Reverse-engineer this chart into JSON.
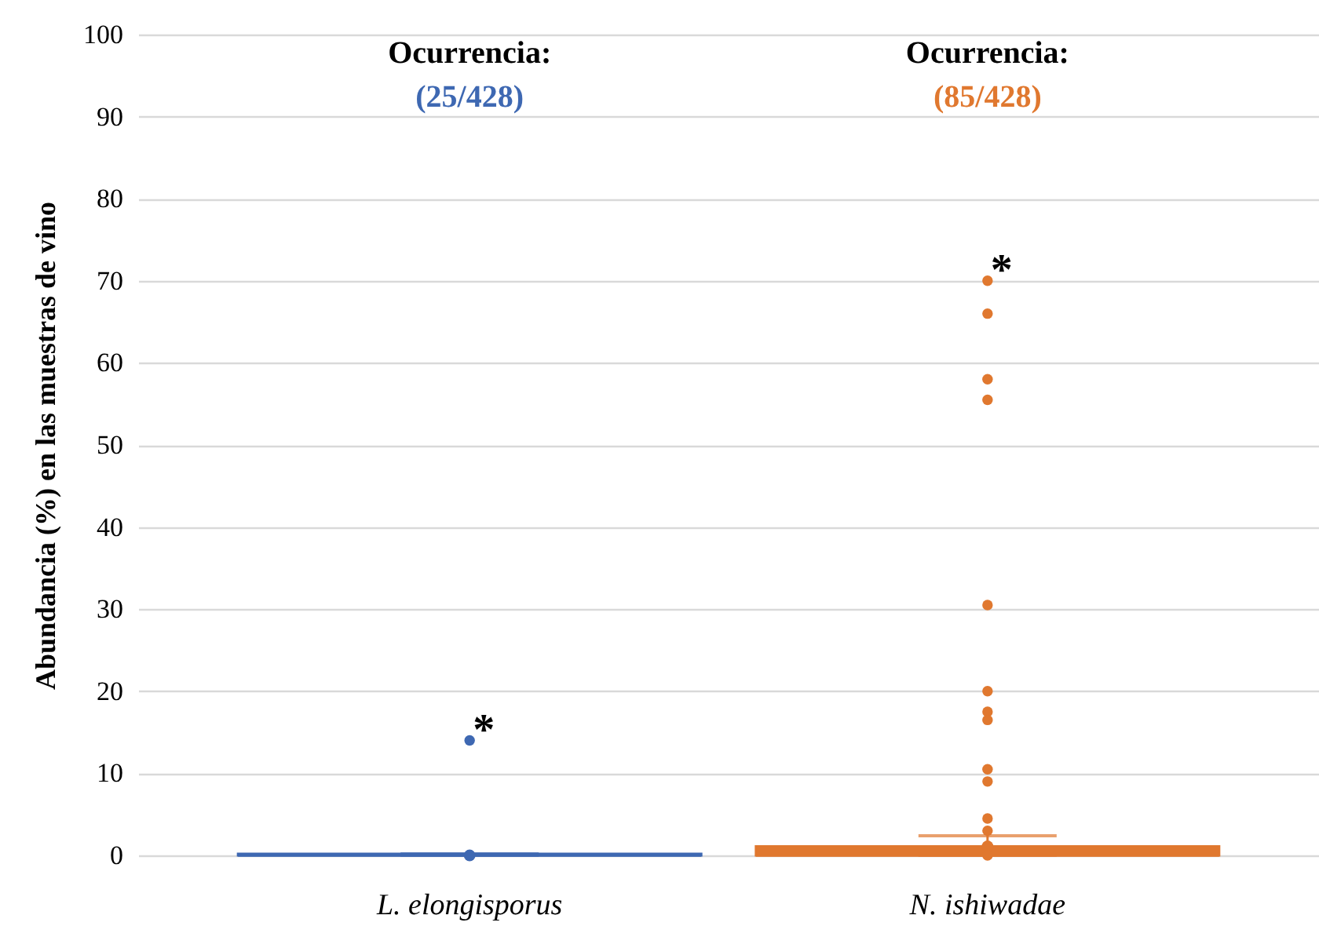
{
  "chart_data": {
    "type": "box",
    "ylabel": "Abundancia (%) en las muestras de vino",
    "categories": [
      "L. elongisporus",
      "N. ishiwadae"
    ],
    "colors": [
      "#3e68b2",
      "#e0782f"
    ],
    "boxes": [
      {
        "low": 0,
        "q1": 0,
        "median": 0,
        "q3": 0.2,
        "high": 0.2,
        "mean": 0,
        "outliers": [
          14
        ]
      },
      {
        "low": 0,
        "q1": 0,
        "median": 0,
        "q3": 1.1,
        "high": 2.4,
        "mean": 1.1,
        "outliers": [
          70,
          66,
          58,
          55.5,
          30.5,
          20,
          17.5,
          16.5,
          10.5,
          9,
          4.5,
          3,
          0
        ]
      }
    ],
    "ylim": [
      0,
      100
    ],
    "yticks": [
      0,
      10,
      20,
      30,
      40,
      50,
      60,
      70,
      80,
      90,
      100
    ],
    "grid": "y",
    "annotations": [
      "Ocurrencia:",
      "(25/428)",
      "*",
      "Ocurrencia:",
      "(85/428)",
      "*"
    ]
  }
}
